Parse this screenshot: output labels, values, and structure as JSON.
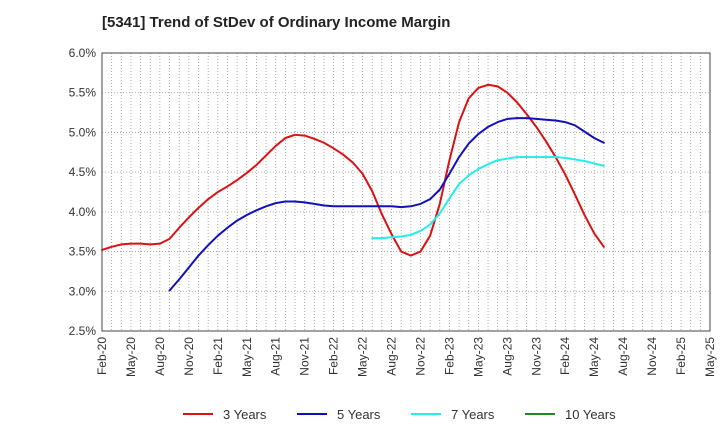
{
  "chart_data": {
    "type": "line",
    "title": "[5341]  Trend of StDev of Ordinary Income Margin",
    "xlabel": "",
    "ylabel": "",
    "ylim": [
      2.5,
      6.0
    ],
    "yticks": [
      "6.0%",
      "5.5%",
      "5.0%",
      "4.5%",
      "4.0%",
      "3.5%",
      "3.0%",
      "2.5%"
    ],
    "xticks": [
      "Feb-20",
      "May-20",
      "Aug-20",
      "Nov-20",
      "Feb-21",
      "May-21",
      "Aug-21",
      "Nov-21",
      "Feb-22",
      "May-22",
      "Aug-22",
      "Nov-22",
      "Feb-23",
      "May-23",
      "Aug-23",
      "Nov-23",
      "Feb-24",
      "May-24",
      "Aug-24",
      "Nov-24",
      "Feb-25",
      "May-25"
    ],
    "grid": true,
    "legend_position": "bottom",
    "series": [
      {
        "name": "3 Years",
        "color": "#dd1111",
        "values": [
          3.52,
          3.56,
          3.59,
          3.6,
          3.6,
          3.59,
          3.6,
          3.66,
          3.8,
          3.93,
          4.05,
          4.16,
          4.25,
          4.32,
          4.4,
          4.49,
          4.59,
          4.71,
          4.83,
          4.93,
          4.97,
          4.96,
          4.92,
          4.87,
          4.8,
          4.72,
          4.62,
          4.48,
          4.26,
          3.97,
          3.72,
          3.5,
          3.45,
          3.5,
          3.7,
          4.1,
          4.65,
          5.13,
          5.43,
          5.56,
          5.6,
          5.58,
          5.5,
          5.38,
          5.23,
          5.07,
          4.89,
          4.69,
          4.47,
          4.22,
          3.96,
          3.73,
          3.56
        ]
      },
      {
        "name": "5 Years",
        "color": "#1111bb",
        "values": [
          null,
          null,
          null,
          null,
          null,
          null,
          null,
          3.01,
          3.15,
          3.3,
          3.45,
          3.58,
          3.7,
          3.8,
          3.89,
          3.96,
          4.02,
          4.07,
          4.11,
          4.13,
          4.13,
          4.12,
          4.1,
          4.08,
          4.07,
          4.07,
          4.07,
          4.07,
          4.07,
          4.07,
          4.07,
          4.06,
          4.07,
          4.1,
          4.16,
          4.28,
          4.48,
          4.69,
          4.86,
          4.98,
          5.07,
          5.13,
          5.17,
          5.18,
          5.18,
          5.17,
          5.16,
          5.15,
          5.13,
          5.09,
          5.01,
          4.93,
          4.87
        ]
      },
      {
        "name": "7 Years",
        "color": "#22eeee",
        "values": [
          null,
          null,
          null,
          null,
          null,
          null,
          null,
          null,
          null,
          null,
          null,
          null,
          null,
          null,
          null,
          null,
          null,
          null,
          null,
          null,
          null,
          null,
          null,
          null,
          null,
          null,
          null,
          null,
          3.67,
          3.67,
          3.68,
          3.69,
          3.71,
          3.76,
          3.84,
          3.98,
          4.17,
          4.35,
          4.46,
          4.54,
          4.6,
          4.65,
          4.67,
          4.69,
          4.69,
          4.69,
          4.69,
          4.69,
          4.68,
          4.66,
          4.64,
          4.61,
          4.58
        ]
      },
      {
        "name": "10 Years",
        "color": "#228822",
        "values": []
      }
    ]
  }
}
